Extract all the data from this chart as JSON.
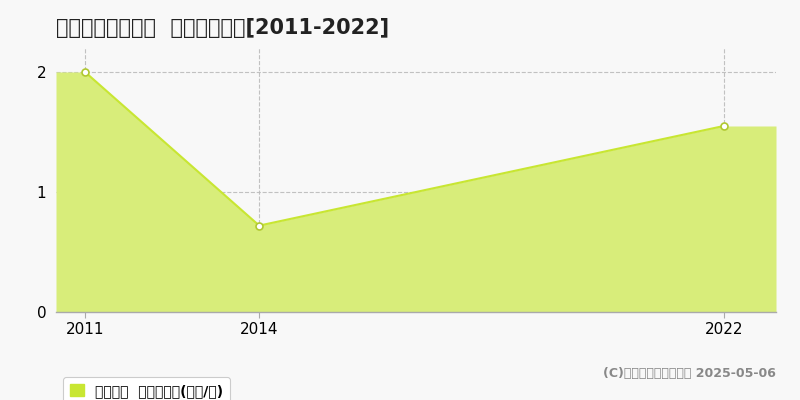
{
  "title": "西伯郡大山町高田  土地価格推移[2011-2022]",
  "years": [
    2011,
    2014,
    2022
  ],
  "values": [
    2.0,
    0.72,
    1.55
  ],
  "line_color": "#c8e632",
  "fill_color": "#d8ed7a",
  "fill_alpha": 1.0,
  "marker_color": "#ffffff",
  "marker_edge_color": "#b0c830",
  "xlim_left": 2010.5,
  "xlim_right": 2022.9,
  "ylim": [
    0,
    2.2
  ],
  "yticks": [
    0,
    1,
    2
  ],
  "xticks": [
    2011,
    2014,
    2022
  ],
  "grid_color": "#bbbbbb",
  "background_color": "#f8f8f8",
  "legend_label": "土地価格  平均坪単価(万円/坪)",
  "copyright_text": "(C)土地価格ドットコム 2025-05-06",
  "title_fontsize": 15,
  "axis_fontsize": 11,
  "legend_fontsize": 10,
  "copyright_fontsize": 9
}
